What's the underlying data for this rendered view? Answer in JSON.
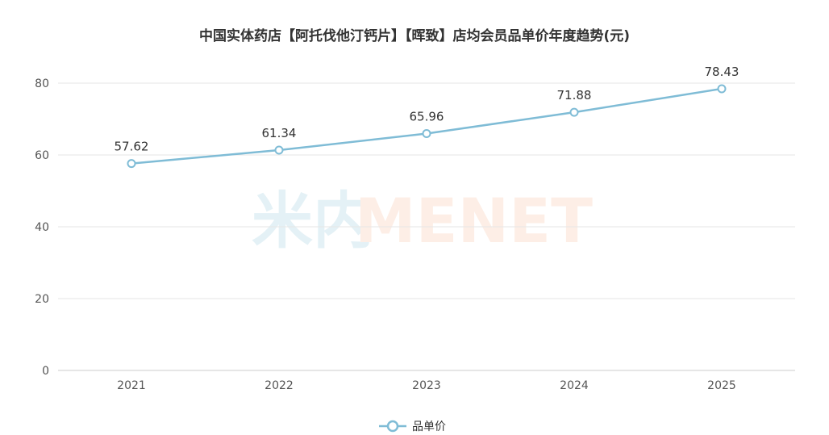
{
  "chart_data": {
    "type": "line",
    "title": "中国实体药店【阿托伐他汀钙片】【晖致】店均会员品单价年度趋势(元)",
    "xlabel": "",
    "ylabel": "",
    "categories": [
      "2021",
      "2022",
      "2023",
      "2024",
      "2025"
    ],
    "series": [
      {
        "name": "品单价",
        "values": [
          57.62,
          61.34,
          65.96,
          71.88,
          78.43
        ],
        "data_labels": [
          "57.62",
          "61.34",
          "65.96",
          "71.88",
          "78.43"
        ],
        "color": "#7fbcd6"
      }
    ],
    "ylim": [
      0,
      80
    ],
    "yticks": [
      0,
      20,
      40,
      60,
      80
    ],
    "grid": true,
    "legend_position": "bottom-center"
  },
  "watermark": {
    "left_text": "米内",
    "right_text": "MENET",
    "left_color": "#e4f1f6",
    "right_color": "#fdeee6"
  },
  "colors": {
    "grid": "#e6e6e6",
    "axis": "#cccccc",
    "marker_fill": "#ffffff"
  }
}
